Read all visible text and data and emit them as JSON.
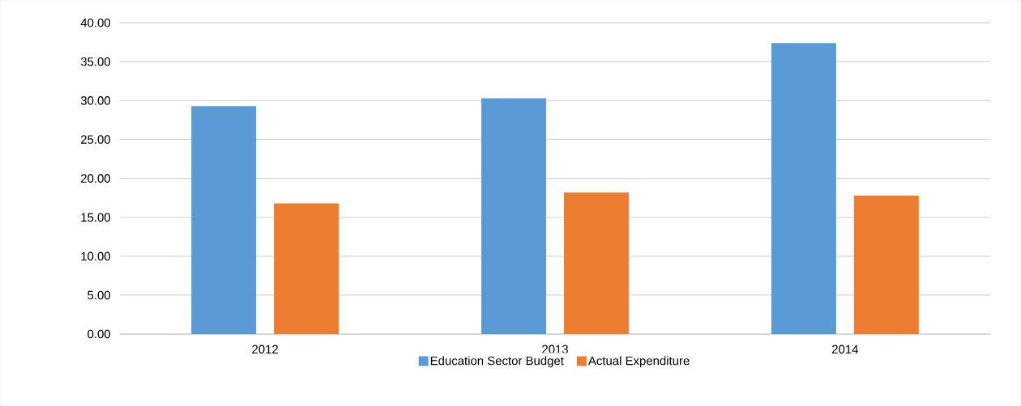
{
  "chart_data": {
    "type": "bar",
    "categories": [
      "2012",
      "2013",
      "2014"
    ],
    "series": [
      {
        "name": "Education Sector Budget",
        "color": "#5b9bd5",
        "values": [
          29.3,
          30.3,
          37.4
        ]
      },
      {
        "name": "Actual Expenditure",
        "color": "#ed7d31",
        "values": [
          16.8,
          18.2,
          17.8
        ]
      }
    ],
    "ylim": [
      0,
      40
    ],
    "yticks": [
      {
        "value": 0,
        "label": "0.00"
      },
      {
        "value": 5,
        "label": "5.00"
      },
      {
        "value": 10,
        "label": "10.00"
      },
      {
        "value": 15,
        "label": "15.00"
      },
      {
        "value": 20,
        "label": "20.00"
      },
      {
        "value": 25,
        "label": "25.00"
      },
      {
        "value": 30,
        "label": "30.00"
      },
      {
        "value": 35,
        "label": "35.00"
      },
      {
        "value": 40,
        "label": "40.00"
      }
    ],
    "grid": "y",
    "legend": "bottom"
  }
}
